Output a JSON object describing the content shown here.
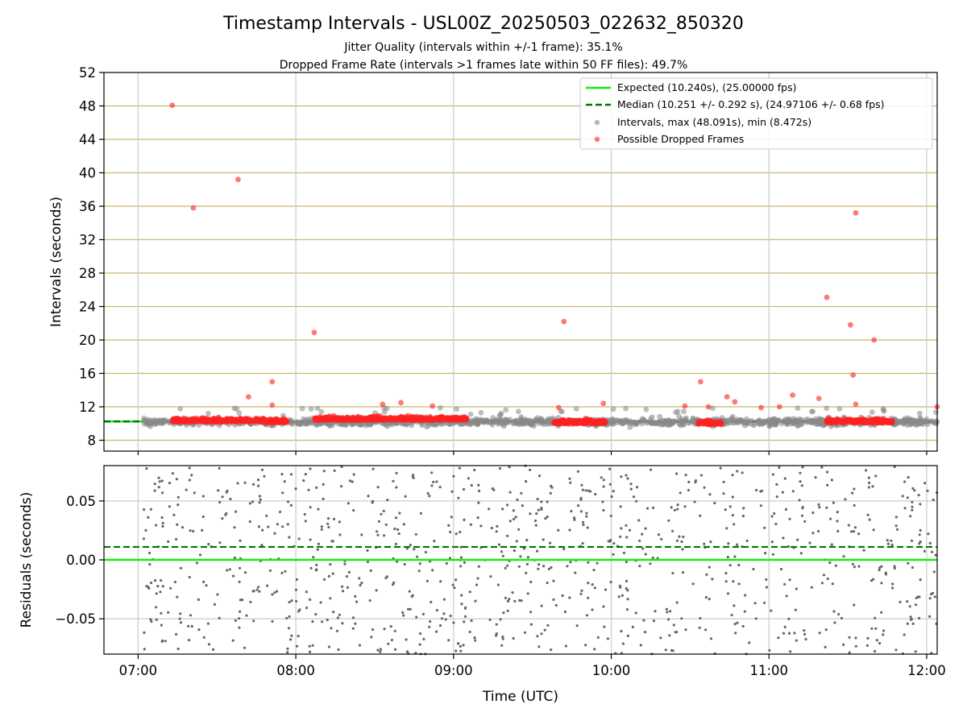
{
  "title": "Timestamp Intervals - USL00Z_20250503_022632_850320",
  "subtitle_1": "Jitter Quality (intervals within +/-1 frame): 35.1%",
  "subtitle_2": "Dropped Frame Rate (intervals >1 frames late within 50 FF files): 49.7%",
  "colors": {
    "expected": "#11ee11",
    "median": "#007700",
    "intervals": "#888888",
    "dropped": "#ff2222",
    "hgrid": "#c9b86a",
    "vgrid": "#cccccc",
    "residual_dots": "#666666"
  },
  "chart_data": [
    {
      "type": "scatter",
      "panel": "intervals",
      "title": "",
      "xlabel": "",
      "ylabel": "Intervals (seconds)",
      "xlim": [
        "06:47",
        "12:04"
      ],
      "ylim": [
        6.7,
        52
      ],
      "xticks": [
        "07:00",
        "08:00",
        "09:00",
        "10:00",
        "11:00",
        "12:00"
      ],
      "yticks": [
        8,
        12,
        16,
        20,
        24,
        28,
        32,
        36,
        40,
        44,
        48,
        52
      ],
      "grid": true,
      "legend_position": "top-right",
      "legend": [
        {
          "kind": "line",
          "label": "Expected (10.240s), (25.00000 fps)"
        },
        {
          "kind": "dashed",
          "label": "Median (10.251 +/- 0.292 s), (24.97106 +/- 0.68 fps)"
        },
        {
          "kind": "dot-gray",
          "label": "Intervals, max (48.091s), min (8.472s)"
        },
        {
          "kind": "dot-red",
          "label": "Possible Dropped Frames"
        }
      ],
      "expected_value": 10.24,
      "median_value": 10.251,
      "interval_time_range": [
        "07:02",
        "12:04"
      ],
      "interval_typical_range": [
        9.4,
        11.0
      ],
      "dropped_clusters": [
        {
          "start": "07:13",
          "end": "07:48",
          "value": 10.4
        },
        {
          "start": "07:48",
          "end": "07:57",
          "value": 10.3
        },
        {
          "start": "08:07",
          "end": "09:05",
          "value": 10.6
        },
        {
          "start": "09:38",
          "end": "09:58",
          "value": 10.2
        },
        {
          "start": "10:33",
          "end": "10:42",
          "value": 10.1
        },
        {
          "start": "11:22",
          "end": "11:47",
          "value": 10.3
        }
      ],
      "dropped_outliers": [
        {
          "t": "07:13",
          "y": 48.09
        },
        {
          "t": "07:21",
          "y": 35.8
        },
        {
          "t": "07:38",
          "y": 39.2
        },
        {
          "t": "07:42",
          "y": 13.2
        },
        {
          "t": "07:51",
          "y": 15.0
        },
        {
          "t": "07:51",
          "y": 12.2
        },
        {
          "t": "08:07",
          "y": 20.9
        },
        {
          "t": "08:33",
          "y": 12.3
        },
        {
          "t": "08:40",
          "y": 12.5
        },
        {
          "t": "08:52",
          "y": 12.1
        },
        {
          "t": "09:42",
          "y": 22.2
        },
        {
          "t": "09:40",
          "y": 11.9
        },
        {
          "t": "09:57",
          "y": 12.4
        },
        {
          "t": "10:28",
          "y": 12.1
        },
        {
          "t": "10:34",
          "y": 15.0
        },
        {
          "t": "10:37",
          "y": 12.0
        },
        {
          "t": "10:44",
          "y": 13.2
        },
        {
          "t": "10:47",
          "y": 12.6
        },
        {
          "t": "10:57",
          "y": 11.9
        },
        {
          "t": "11:04",
          "y": 12.0
        },
        {
          "t": "11:09",
          "y": 13.4
        },
        {
          "t": "11:19",
          "y": 13.0
        },
        {
          "t": "11:22",
          "y": 25.1
        },
        {
          "t": "11:31",
          "y": 21.8
        },
        {
          "t": "11:32",
          "y": 15.8
        },
        {
          "t": "11:33",
          "y": 35.2
        },
        {
          "t": "11:33",
          "y": 12.3
        },
        {
          "t": "11:40",
          "y": 20.0
        },
        {
          "t": "12:04",
          "y": 12.0
        }
      ]
    },
    {
      "type": "scatter",
      "panel": "residuals",
      "title": "",
      "xlabel": "Time (UTC)",
      "ylabel": "Residuals (seconds)",
      "xlim": [
        "06:47",
        "12:04"
      ],
      "ylim": [
        -0.08,
        0.08
      ],
      "xticks": [
        "07:00",
        "08:00",
        "09:00",
        "10:00",
        "11:00",
        "12:00"
      ],
      "yticks": [
        0.05,
        0.0,
        -0.05
      ],
      "ytick_labels": [
        "0.05",
        "0.00",
        "−0.05"
      ],
      "grid": true,
      "expected_residual": 0.0,
      "median_residual": 0.011,
      "point_time_range": [
        "07:02",
        "12:04"
      ],
      "point_value_range": [
        -0.08,
        0.08
      ]
    }
  ]
}
